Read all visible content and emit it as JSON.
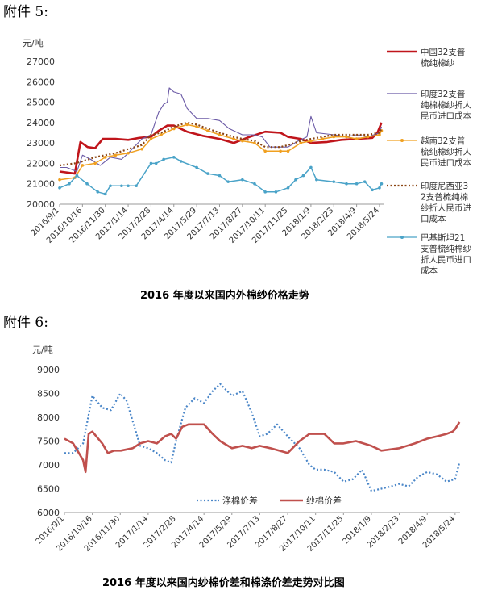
{
  "annex1_label": "附件 5:",
  "annex2_label": "附件 6:",
  "chart_data": [
    {
      "type": "line",
      "title": "2016 年度以来国内外棉纱价格走势",
      "unit": "元/吨",
      "ylim": [
        20000,
        27000
      ],
      "yticks": [
        20000,
        21000,
        22000,
        23000,
        24000,
        25000,
        26000,
        27000
      ],
      "xlim": [
        "2016/9/1",
        "2018/6/1"
      ],
      "xticks": [
        "2016/9/1",
        "2016/10/16",
        "2016/11/30",
        "2017/1/14",
        "2017/2/28",
        "2017/4/14",
        "2017/5/29",
        "2017/7/13",
        "2017/8/27",
        "2017/10/11",
        "2017/11/25",
        "2018/1/9",
        "2018/2/23",
        "2018/4/9",
        "2018/5/24"
      ],
      "grid": false,
      "legend_position": "right",
      "series": [
        {
          "name": "中国32支普梳纯棉纱",
          "color": "#c0151b",
          "style": "solid-thick",
          "x": [
            "2016/9/1",
            "2016/10/1",
            "2016/10/12",
            "2016/10/26",
            "2016/11/10",
            "2016/11/25",
            "2016/12/20",
            "2017/1/14",
            "2017/2/5",
            "2017/2/28",
            "2017/3/15",
            "2017/4/1",
            "2017/4/14",
            "2017/5/10",
            "2017/6/10",
            "2017/7/13",
            "2017/8/10",
            "2017/9/10",
            "2017/10/11",
            "2017/11/10",
            "2017/11/25",
            "2017/12/20",
            "2018/1/9",
            "2018/2/10",
            "2018/3/10",
            "2018/4/9",
            "2018/5/10",
            "2018/5/20",
            "2018/5/28"
          ],
          "y": [
            21600,
            21500,
            23050,
            22800,
            22750,
            23200,
            23200,
            23150,
            23250,
            23300,
            23600,
            23850,
            23850,
            23550,
            23350,
            23200,
            23000,
            23300,
            23550,
            23500,
            23300,
            23200,
            23000,
            23050,
            23150,
            23200,
            23250,
            23500,
            24000
          ]
        },
        {
          "name": "印度32支普纯棉棉纱折人民币进口成本",
          "color": "#6b5aa6",
          "style": "solid-thin",
          "x": [
            "2016/9/1",
            "2016/9/15",
            "2016/10/5",
            "2016/10/16",
            "2016/11/1",
            "2016/11/20",
            "2016/12/10",
            "2017/1/1",
            "2017/1/14",
            "2017/2/10",
            "2017/2/28",
            "2017/3/15",
            "2017/3/25",
            "2017/4/1",
            "2017/4/5",
            "2017/4/14",
            "2017/4/28",
            "2017/5/10",
            "2017/5/29",
            "2017/6/20",
            "2017/7/13",
            "2017/8/1",
            "2017/8/27",
            "2017/9/20",
            "2017/10/5",
            "2017/10/20",
            "2017/11/10",
            "2017/11/25",
            "2017/12/15",
            "2018/1/1",
            "2018/1/9",
            "2018/1/20",
            "2018/2/23",
            "2018/3/20",
            "2018/4/9",
            "2018/5/1",
            "2018/5/24",
            "2018/5/28"
          ],
          "y": [
            21800,
            21800,
            21600,
            22400,
            22200,
            21900,
            22300,
            22200,
            22500,
            23200,
            23400,
            24500,
            24900,
            25000,
            25700,
            25500,
            25400,
            24700,
            24200,
            24200,
            24100,
            23700,
            23400,
            23400,
            23300,
            22800,
            22800,
            22800,
            23100,
            23300,
            24300,
            23500,
            23400,
            23300,
            23400,
            23300,
            23500,
            23800
          ]
        },
        {
          "name": "越南32支普梳纯棉纱折人民币进口成本",
          "color": "#f0a020",
          "style": "solid-markers",
          "x": [
            "2016/9/1",
            "2016/10/1",
            "2016/10/16",
            "2016/11/10",
            "2016/11/30",
            "2016/12/20",
            "2017/1/14",
            "2017/2/10",
            "2017/2/28",
            "2017/3/20",
            "2017/4/14",
            "2017/5/10",
            "2017/5/29",
            "2017/6/20",
            "2017/7/13",
            "2017/8/10",
            "2017/8/27",
            "2017/9/20",
            "2017/10/11",
            "2017/11/10",
            "2017/11/25",
            "2017/12/20",
            "2018/1/9",
            "2018/2/1",
            "2018/2/23",
            "2018/3/20",
            "2018/4/9",
            "2018/5/1",
            "2018/5/24",
            "2018/5/28"
          ],
          "y": [
            21200,
            21300,
            21900,
            22000,
            22300,
            22400,
            22500,
            22700,
            23200,
            23400,
            23700,
            23900,
            23800,
            23600,
            23400,
            23200,
            23100,
            23000,
            22600,
            22600,
            22600,
            23000,
            23100,
            23200,
            23300,
            23300,
            23200,
            23300,
            23400,
            23600
          ]
        },
        {
          "name": "印度尼西亚32支普梳纯棉纱折人民币进口成本",
          "color": "#8b4513",
          "style": "dotted",
          "x": [
            "2016/9/1",
            "2016/10/1",
            "2016/10/16",
            "2016/11/10",
            "2016/11/30",
            "2016/12/20",
            "2017/1/14",
            "2017/2/10",
            "2017/2/28",
            "2017/3/20",
            "2017/4/14",
            "2017/5/10",
            "2017/5/29",
            "2017/6/20",
            "2017/7/13",
            "2017/8/10",
            "2017/8/27",
            "2017/9/20",
            "2017/10/11",
            "2017/11/10",
            "2017/11/25",
            "2017/12/20",
            "2018/1/9",
            "2018/2/1",
            "2018/2/23",
            "2018/3/20",
            "2018/4/9",
            "2018/5/1",
            "2018/5/24",
            "2018/5/28"
          ],
          "y": [
            21900,
            22000,
            22100,
            22300,
            22400,
            22500,
            22700,
            22900,
            23400,
            23500,
            23800,
            24000,
            23900,
            23700,
            23500,
            23300,
            23200,
            23100,
            22800,
            22800,
            22900,
            23100,
            23200,
            23300,
            23400,
            23400,
            23400,
            23400,
            23500,
            23700
          ]
        },
        {
          "name": "巴基斯坦21支普梳纯棉纱折人民币进口成本",
          "color": "#4aa3c8",
          "style": "solid-markers",
          "x": [
            "2016/9/1",
            "2016/9/20",
            "2016/10/5",
            "2016/10/25",
            "2016/11/15",
            "2016/11/30",
            "2016/12/10",
            "2017/1/1",
            "2017/1/14",
            "2017/1/30",
            "2017/2/28",
            "2017/3/10",
            "2017/3/25",
            "2017/4/14",
            "2017/4/28",
            "2017/5/29",
            "2017/6/20",
            "2017/7/13",
            "2017/7/30",
            "2017/8/27",
            "2017/9/20",
            "2017/10/11",
            "2017/11/1",
            "2017/11/25",
            "2017/12/10",
            "2017/12/25",
            "2018/1/9",
            "2018/1/20",
            "2018/2/23",
            "2018/3/20",
            "2018/4/9",
            "2018/4/25",
            "2018/5/10",
            "2018/5/24",
            "2018/5/28"
          ],
          "y": [
            20800,
            21000,
            21400,
            21000,
            20600,
            20500,
            20900,
            20900,
            20900,
            20900,
            22000,
            22000,
            22200,
            22300,
            22100,
            21800,
            21500,
            21400,
            21100,
            21200,
            21000,
            20600,
            20600,
            20800,
            21200,
            21400,
            21800,
            21200,
            21100,
            21000,
            21000,
            21100,
            20700,
            20800,
            21000
          ]
        }
      ]
    },
    {
      "type": "line",
      "title": "2016 年度以来国内纱棉价差和棉涤价差走势对比图",
      "unit": "元/吨",
      "ylim": [
        6000,
        9000
      ],
      "yticks": [
        6000,
        6500,
        7000,
        7500,
        8000,
        8500,
        9000
      ],
      "xlim": [
        "2016/9/1",
        "2018/6/1"
      ],
      "xticks": [
        "2016/9/1",
        "2016/10/16",
        "2016/11/30",
        "2017/1/14",
        "2017/2/28",
        "2017/4/14",
        "2017/5/29",
        "2017/7/13",
        "2017/8/27",
        "2017/10/11",
        "2017/11/25",
        "2018/1/9",
        "2018/2/23",
        "2018/4/9",
        "2018/5/24"
      ],
      "grid": false,
      "legend_position": "bottom-inside",
      "series": [
        {
          "name": "涤棉价差",
          "color": "#4a86c8",
          "style": "dotted",
          "x": [
            "2016/9/1",
            "2016/9/15",
            "2016/10/1",
            "2016/10/16",
            "2016/11/1",
            "2016/11/15",
            "2016/11/30",
            "2016/12/10",
            "2017/1/1",
            "2017/1/14",
            "2017/1/28",
            "2017/2/10",
            "2017/2/20",
            "2017/2/28",
            "2017/3/15",
            "2017/3/30",
            "2017/4/14",
            "2017/4/28",
            "2017/5/10",
            "2017/5/29",
            "2017/6/15",
            "2017/6/30",
            "2017/7/13",
            "2017/7/25",
            "2017/8/10",
            "2017/8/27",
            "2017/9/15",
            "2017/10/1",
            "2017/10/11",
            "2017/10/25",
            "2017/11/10",
            "2017/11/25",
            "2017/12/10",
            "2017/12/25",
            "2018/1/9",
            "2018/1/25",
            "2018/2/10",
            "2018/2/23",
            "2018/3/10",
            "2018/3/25",
            "2018/4/9",
            "2018/4/25",
            "2018/5/10",
            "2018/5/24",
            "2018/5/31"
          ],
          "y": [
            7250,
            7250,
            7450,
            8450,
            8200,
            8150,
            8500,
            8350,
            7400,
            7350,
            7250,
            7100,
            7050,
            7500,
            8200,
            8400,
            8300,
            8550,
            8700,
            8450,
            8550,
            8100,
            7600,
            7650,
            7850,
            7600,
            7350,
            7000,
            6900,
            6900,
            6850,
            6650,
            6700,
            6900,
            6450,
            6500,
            6550,
            6600,
            6550,
            6750,
            6850,
            6800,
            6650,
            6700,
            7050
          ]
        },
        {
          "name": "纱棉价差",
          "color": "#c0504d",
          "style": "solid-thick",
          "x": [
            "2016/9/1",
            "2016/9/15",
            "2016/10/1",
            "2016/10/5",
            "2016/10/10",
            "2016/10/16",
            "2016/11/1",
            "2016/11/10",
            "2016/11/20",
            "2016/12/1",
            "2016/12/20",
            "2017/1/1",
            "2017/1/14",
            "2017/1/28",
            "2017/2/10",
            "2017/2/20",
            "2017/2/28",
            "2017/3/10",
            "2017/3/20",
            "2017/4/1",
            "2017/4/14",
            "2017/4/28",
            "2017/5/10",
            "2017/5/29",
            "2017/6/15",
            "2017/6/30",
            "2017/7/13",
            "2017/7/30",
            "2017/8/27",
            "2017/9/15",
            "2017/10/1",
            "2017/10/11",
            "2017/10/25",
            "2017/11/10",
            "2017/11/25",
            "2017/12/15",
            "2018/1/9",
            "2018/1/25",
            "2018/2/23",
            "2018/3/20",
            "2018/4/9",
            "2018/4/25",
            "2018/5/10",
            "2018/5/20",
            "2018/5/24",
            "2018/5/31"
          ],
          "y": [
            7550,
            7450,
            7100,
            6850,
            7650,
            7700,
            7450,
            7250,
            7300,
            7300,
            7350,
            7450,
            7500,
            7450,
            7600,
            7650,
            7550,
            7800,
            7850,
            7850,
            7850,
            7650,
            7500,
            7350,
            7400,
            7350,
            7400,
            7350,
            7250,
            7500,
            7650,
            7650,
            7650,
            7450,
            7450,
            7500,
            7400,
            7300,
            7350,
            7450,
            7550,
            7600,
            7650,
            7700,
            7750,
            7900
          ]
        }
      ]
    }
  ]
}
